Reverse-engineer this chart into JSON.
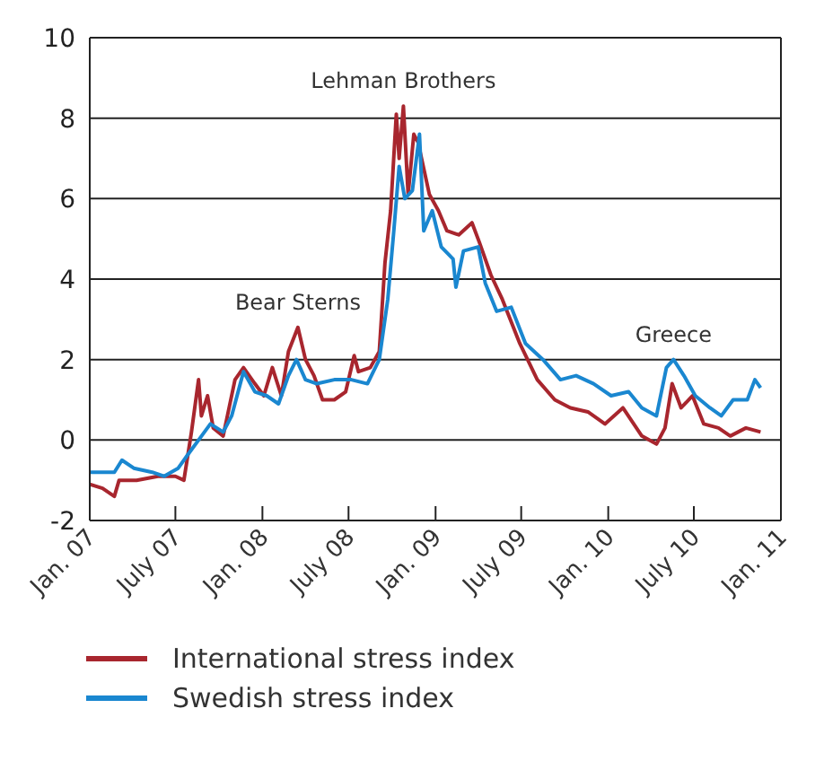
{
  "chart_data": {
    "type": "line",
    "legend": "bottom",
    "grid": "y",
    "line_style": "solid",
    "marker": "none",
    "xlim": [
      "2007-01",
      "2011-01"
    ],
    "xticks": [
      {
        "value": "2007-01",
        "label": "Jan. 07"
      },
      {
        "value": "2007-07",
        "label": "July 07"
      },
      {
        "value": "2008-01",
        "label": "Jan. 08"
      },
      {
        "value": "2008-07",
        "label": "July 08"
      },
      {
        "value": "2009-01",
        "label": "Jan. 09"
      },
      {
        "value": "2009-07",
        "label": "July 09"
      },
      {
        "value": "2010-01",
        "label": "Jan. 10"
      },
      {
        "value": "2010-07",
        "label": "July 10"
      },
      {
        "value": "2011-01",
        "label": "Jan. 11"
      }
    ],
    "ylim": [
      -2,
      10
    ],
    "yticks": [
      -2,
      0,
      2,
      4,
      6,
      8,
      10
    ],
    "annotations": [
      {
        "text": "Bear Sterns",
        "x": "2008-03-16",
        "y": 2.8
      },
      {
        "text": "Lehman Brothers",
        "x": "2008-10-25",
        "y": 8.3
      },
      {
        "text": "Greece",
        "x": "2010-05-19",
        "y": 2
      }
    ],
    "series": [
      {
        "name": "International stress index",
        "color": "#a8262e",
        "x": [
          "2007-01-01",
          "2007-01-28",
          "2007-02-22",
          "2007-03-04",
          "2007-04-10",
          "2007-05-25",
          "2007-07-01",
          "2007-07-19",
          "2007-08-04",
          "2007-08-19",
          "2007-08-25",
          "2007-09-07",
          "2007-09-19",
          "2007-10-10",
          "2007-11-04",
          "2007-11-22",
          "2007-12-16",
          "2008-01-04",
          "2008-01-22",
          "2008-02-10",
          "2008-02-25",
          "2008-03-16",
          "2008-04-01",
          "2008-04-19",
          "2008-05-07",
          "2008-06-01",
          "2008-06-25",
          "2008-07-13",
          "2008-07-22",
          "2008-08-16",
          "2008-09-04",
          "2008-09-16",
          "2008-09-28",
          "2008-10-10",
          "2008-10-16",
          "2008-10-25",
          "2008-11-04",
          "2008-11-16",
          "2008-11-25",
          "2008-12-19",
          "2009-01-07",
          "2009-01-25",
          "2009-02-19",
          "2009-03-19",
          "2009-04-04",
          "2009-04-28",
          "2009-05-22",
          "2009-06-28",
          "2009-08-04",
          "2009-09-10",
          "2009-10-13",
          "2009-11-19",
          "2009-12-25",
          "2010-02-01",
          "2010-03-13",
          "2010-04-13",
          "2010-05-01",
          "2010-05-16",
          "2010-06-04",
          "2010-06-28",
          "2010-07-22",
          "2010-08-22",
          "2010-09-16",
          "2010-10-19",
          "2010-11-19"
        ],
        "values": [
          -1.1,
          -1.2,
          -1.4,
          -1.0,
          -1.0,
          -0.9,
          -0.9,
          -1.0,
          0.2,
          1.5,
          0.6,
          1.1,
          0.3,
          0.1,
          1.5,
          1.8,
          1.4,
          1.1,
          1.8,
          1.1,
          2.2,
          2.8,
          2.0,
          1.6,
          1.0,
          1.0,
          1.2,
          2.1,
          1.7,
          1.8,
          2.2,
          4.4,
          5.7,
          8.1,
          7.0,
          8.3,
          6.1,
          7.6,
          7.4,
          6.1,
          5.7,
          5.2,
          5.1,
          5.4,
          4.9,
          4.1,
          3.5,
          2.4,
          1.5,
          1.0,
          0.8,
          0.7,
          0.4,
          0.8,
          0.1,
          -0.1,
          0.3,
          1.4,
          0.8,
          1.1,
          0.4,
          0.3,
          0.1,
          0.3,
          0.2
        ]
      },
      {
        "name": "Swedish stress index",
        "color": "#1a87d0",
        "x": [
          "2007-01-01",
          "2007-02-22",
          "2007-03-10",
          "2007-04-04",
          "2007-05-13",
          "2007-06-07",
          "2007-07-07",
          "2007-07-25",
          "2007-08-19",
          "2007-09-13",
          "2007-10-10",
          "2007-10-28",
          "2007-11-22",
          "2007-12-16",
          "2008-01-10",
          "2008-02-04",
          "2008-02-25",
          "2008-03-13",
          "2008-04-01",
          "2008-04-25",
          "2008-06-01",
          "2008-07-07",
          "2008-08-10",
          "2008-09-04",
          "2008-09-22",
          "2008-10-04",
          "2008-10-16",
          "2008-10-28",
          "2008-11-13",
          "2008-11-28",
          "2008-12-07",
          "2008-12-25",
          "2009-01-13",
          "2009-02-07",
          "2009-02-13",
          "2009-03-01",
          "2009-04-01",
          "2009-04-16",
          "2009-05-10",
          "2009-06-10",
          "2009-07-10",
          "2009-08-16",
          "2009-09-22",
          "2009-10-25",
          "2009-12-01",
          "2010-01-07",
          "2010-02-13",
          "2010-03-13",
          "2010-04-13",
          "2010-05-04",
          "2010-05-19",
          "2010-06-10",
          "2010-07-04",
          "2010-08-04",
          "2010-08-28",
          "2010-09-22",
          "2010-10-22",
          "2010-11-07",
          "2010-11-19"
        ],
        "values": [
          -0.8,
          -0.8,
          -0.5,
          -0.7,
          -0.8,
          -0.9,
          -0.7,
          -0.4,
          0.0,
          0.4,
          0.2,
          0.6,
          1.7,
          1.2,
          1.1,
          0.9,
          1.6,
          2.0,
          1.5,
          1.4,
          1.5,
          1.5,
          1.4,
          2.0,
          3.5,
          5.1,
          6.8,
          6.0,
          6.2,
          7.6,
          5.2,
          5.7,
          4.8,
          4.5,
          3.8,
          4.7,
          4.8,
          3.9,
          3.2,
          3.3,
          2.4,
          2.0,
          1.5,
          1.6,
          1.4,
          1.1,
          1.2,
          0.8,
          0.6,
          1.8,
          2.0,
          1.6,
          1.1,
          0.8,
          0.6,
          1.0,
          1.0,
          1.5,
          1.3
        ]
      }
    ]
  }
}
